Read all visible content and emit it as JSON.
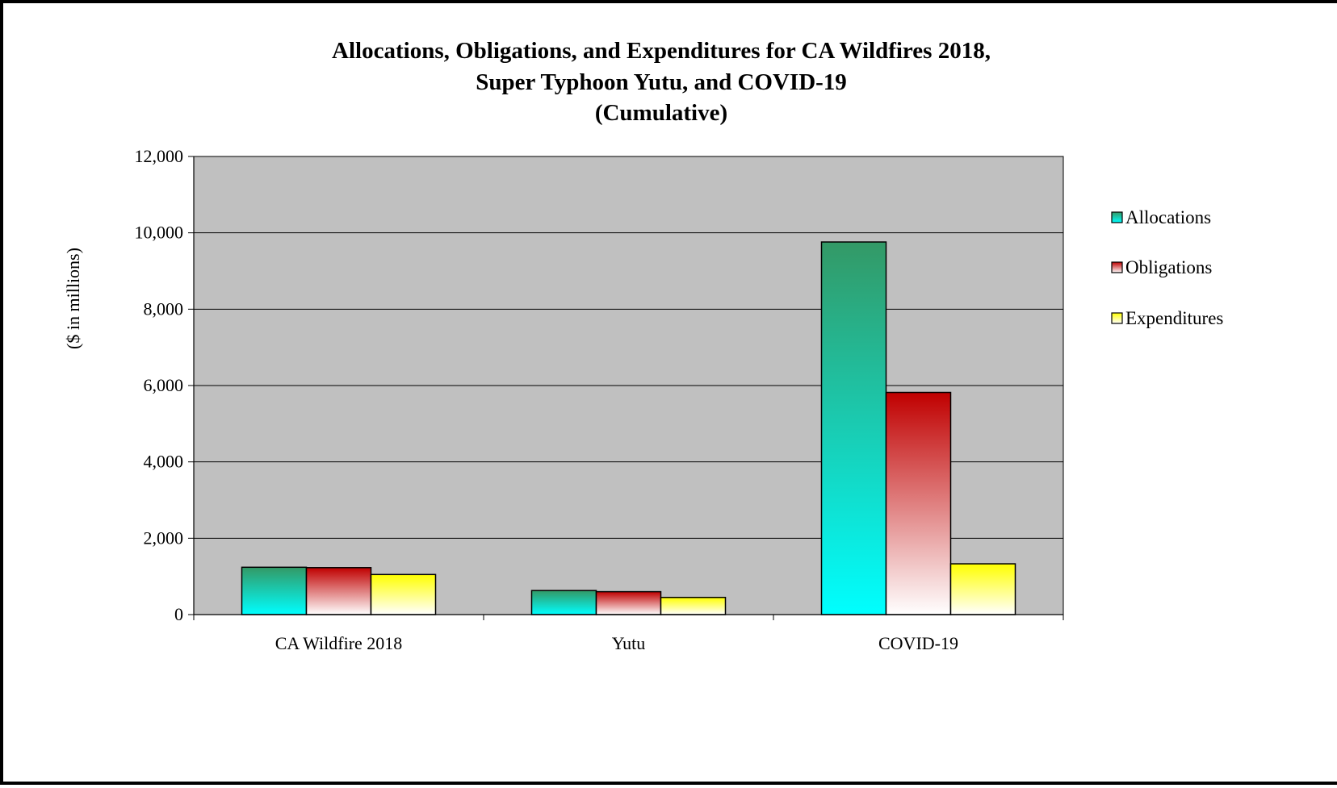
{
  "chart_data": {
    "type": "bar",
    "title": [
      "Allocations, Obligations, and Expenditures for CA Wildfires 2018,",
      "Super Typhoon Yutu, and COVID-19",
      "(Cumulative)"
    ],
    "xlabel": "",
    "ylabel": "($ in millions)",
    "ylim": [
      0,
      12000
    ],
    "yticks": [
      0,
      2000,
      4000,
      6000,
      8000,
      10000,
      12000
    ],
    "ytick_labels": [
      "0",
      "2,000",
      "4,000",
      "6,000",
      "8,000",
      "10,000",
      "12,000"
    ],
    "categories": [
      "CA Wildfire 2018",
      "Yutu",
      "COVID-19"
    ],
    "series": [
      {
        "name": "Allocations",
        "values": [
          1240,
          630,
          9760
        ],
        "color_top": "#339966",
        "color_bottom": "#00FFFF"
      },
      {
        "name": "Obligations",
        "values": [
          1230,
          600,
          5820
        ],
        "color_top": "#C00000",
        "color_bottom": "#FFFFFF"
      },
      {
        "name": "Expenditures",
        "values": [
          1050,
          450,
          1330
        ],
        "color_top": "#FFFF00",
        "color_bottom": "#FFFFFF"
      }
    ],
    "grid": true,
    "plot_background": "#C0C0C0",
    "legend_position": "right"
  }
}
